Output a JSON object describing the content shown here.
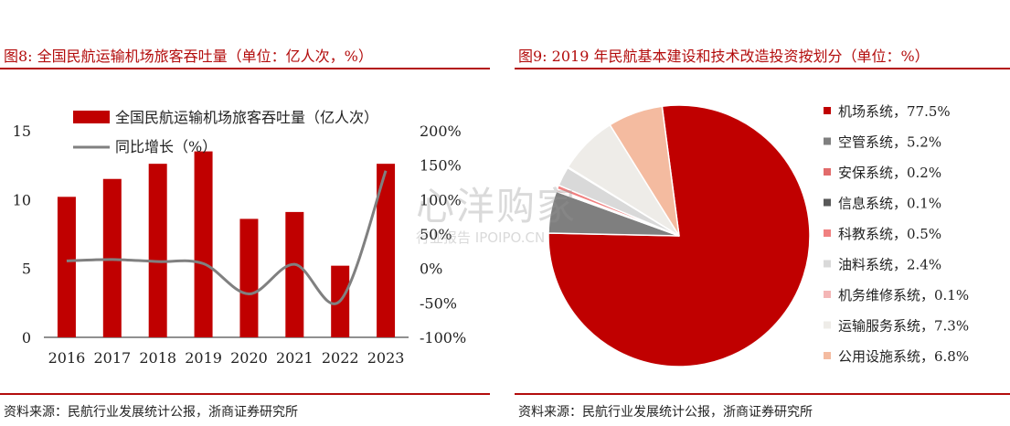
{
  "left": {
    "fig_title": "图8:  全国民航运输机场旅客吞吐量（单位：亿人次，%）",
    "source": "资料来源：民航行业发展统计公报，浙商证券研究所"
  },
  "right": {
    "fig_title": "图9:  2019 年民航基本建设和技术改造投资按划分（单位：%）",
    "source": "资料来源：民航行业发展统计公报，浙商证券研究所"
  },
  "watermark": {
    "main": "心洋购家",
    "sub": "行业报告 IPOIPO.CN"
  },
  "chart_data": [
    {
      "type": "bar",
      "categories": [
        "2016",
        "2017",
        "2018",
        "2019",
        "2020",
        "2021",
        "2022",
        "2023"
      ],
      "series": [
        {
          "name": "全国民航运输机场旅客吞吐量（亿人次）",
          "type": "bar",
          "axis": "left",
          "values": [
            10.2,
            11.5,
            12.6,
            13.5,
            8.6,
            9.1,
            5.2,
            12.6
          ]
        },
        {
          "name": "同比增长（%）",
          "type": "line",
          "axis": "right",
          "values": [
            11,
            13,
            10,
            7,
            -37,
            6,
            -47,
            142
          ]
        }
      ],
      "y_left": {
        "ylim": [
          0,
          15
        ],
        "ticks": [
          "0",
          "5",
          "10",
          "15"
        ]
      },
      "y_right": {
        "ylim": [
          -100,
          200
        ],
        "ticks": [
          "-100%",
          "-50%",
          "0%",
          "50%",
          "100%",
          "150%",
          "200%"
        ]
      },
      "legend": "top",
      "grid": false,
      "colors": {
        "bar": "#c00000",
        "line": "#808080"
      }
    },
    {
      "type": "pie",
      "series": [
        {
          "label": "机场系统，77.5%",
          "value": 77.5,
          "color": "#c00000"
        },
        {
          "label": "空管系统，5.2%",
          "value": 5.2,
          "color": "#7f7f7f"
        },
        {
          "label": "安保系统，0.2%",
          "value": 0.2,
          "color": "#e26b6b"
        },
        {
          "label": "信息系统，0.1%",
          "value": 0.1,
          "color": "#595959"
        },
        {
          "label": "科教系统，0.5%",
          "value": 0.5,
          "color": "#f08080"
        },
        {
          "label": "油料系统，2.4%",
          "value": 2.4,
          "color": "#d9d9d9"
        },
        {
          "label": "机务维修系统，0.1%",
          "value": 0.1,
          "color": "#f4b6b6"
        },
        {
          "label": "运输服务系统，7.3%",
          "value": 7.3,
          "color": "#eeece8"
        },
        {
          "label": "公用设施系统，6.8%",
          "value": 6.8,
          "color": "#f4bba0"
        }
      ],
      "legend": "right"
    }
  ]
}
